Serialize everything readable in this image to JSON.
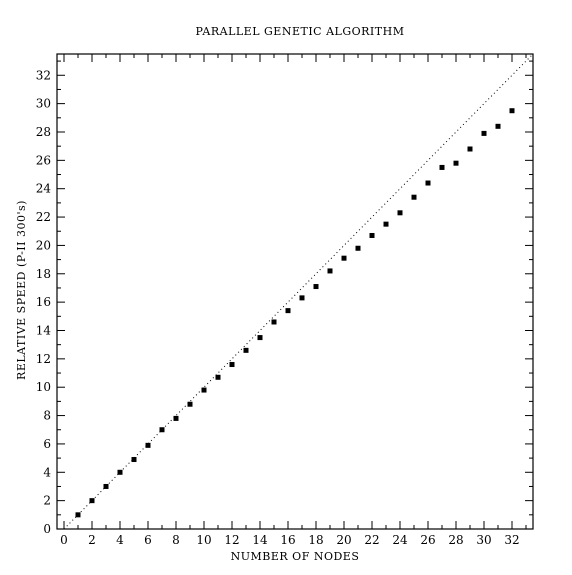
{
  "chart_data": {
    "type": "scatter",
    "title": "PARALLEL GENETIC ALGORITHM",
    "xlabel": "NUMBER OF NODES",
    "ylabel": "RELATIVE SPEED (P-II 300's)",
    "xlim": [
      -0.5,
      33.5
    ],
    "ylim": [
      0,
      33.5
    ],
    "xticks": [
      0,
      2,
      4,
      6,
      8,
      10,
      12,
      14,
      16,
      18,
      20,
      22,
      24,
      26,
      28,
      30,
      32
    ],
    "yticks": [
      0,
      2,
      4,
      6,
      8,
      10,
      12,
      14,
      16,
      18,
      20,
      22,
      24,
      26,
      28,
      30,
      32
    ],
    "grid": false,
    "reference_line": {
      "style": "dotted",
      "slope": 1,
      "intercept": 0
    },
    "series": [
      {
        "marker": "square",
        "x": [
          1,
          2,
          3,
          4,
          5,
          6,
          7,
          8,
          9,
          10,
          11,
          12,
          13,
          14,
          15,
          16,
          17,
          18,
          19,
          20,
          21,
          22,
          23,
          24,
          25,
          26,
          27,
          28,
          29,
          30,
          31,
          32
        ],
        "y": [
          1.0,
          2.0,
          3.0,
          4.0,
          4.9,
          5.9,
          7.0,
          7.8,
          8.8,
          9.8,
          10.7,
          11.6,
          12.6,
          13.5,
          14.6,
          15.4,
          16.3,
          17.1,
          18.2,
          19.1,
          19.8,
          20.7,
          21.5,
          22.3,
          23.4,
          24.4,
          25.5,
          25.8,
          26.8,
          27.9,
          28.4,
          29.5
        ]
      }
    ]
  }
}
